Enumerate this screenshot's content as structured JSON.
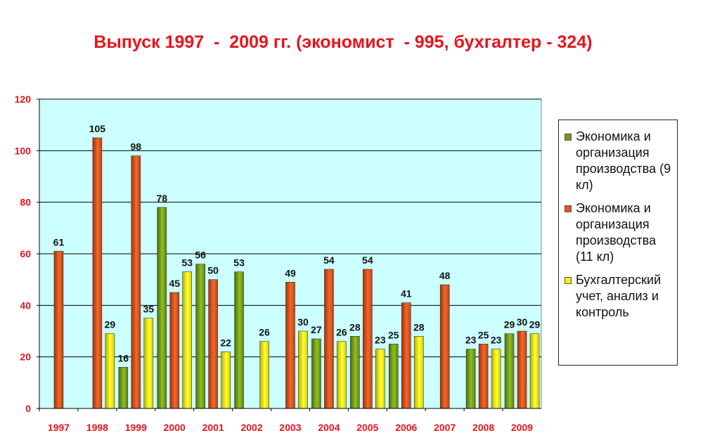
{
  "chart_data": {
    "type": "bar",
    "title": "Выпуск 1997  -  2009 гг. (экономист  - 995, бухгалтер - 324)",
    "categories": [
      "1997",
      "1998",
      "1999",
      "2000",
      "2001",
      "2002",
      "2003",
      "2004",
      "2005",
      "2006",
      "2007",
      "2008",
      "2009"
    ],
    "ylim": [
      0,
      120
    ],
    "yticks": [
      0,
      20,
      40,
      60,
      80,
      100,
      120
    ],
    "grid": true,
    "legend_position": "right",
    "series": [
      {
        "name": "Экономика и организация производства (9 кл)",
        "color": "#6e9a1a",
        "values": [
          null,
          null,
          16,
          78,
          56,
          53,
          null,
          27,
          28,
          25,
          null,
          23,
          29
        ]
      },
      {
        "name": "Экономика и организация производства (11 кл)",
        "color": "#e8521c",
        "values": [
          61,
          105,
          98,
          45,
          50,
          null,
          49,
          54,
          54,
          41,
          48,
          25,
          30
        ]
      },
      {
        "name": "Бухгалтерский учет, анализ и контроль",
        "color": "#f4f010",
        "values": [
          null,
          29,
          35,
          53,
          22,
          26,
          30,
          26,
          23,
          28,
          null,
          23,
          29
        ]
      }
    ]
  }
}
